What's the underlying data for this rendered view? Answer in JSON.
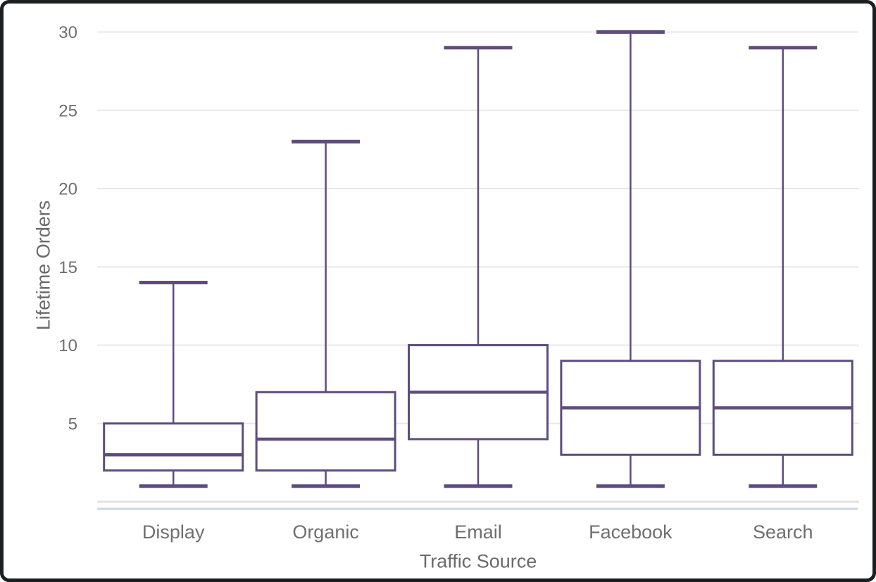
{
  "chart_data": {
    "type": "boxplot",
    "title": "",
    "xlabel": "Traffic Source",
    "ylabel": "Lifetime Orders",
    "categories": [
      "Display",
      "Organic",
      "Email",
      "Facebook",
      "Search"
    ],
    "series": [
      {
        "name": "Display",
        "min": 1,
        "q1": 2,
        "median": 3,
        "q3": 5,
        "max": 14
      },
      {
        "name": "Organic",
        "min": 1,
        "q1": 2,
        "median": 4,
        "q3": 7,
        "max": 23
      },
      {
        "name": "Email",
        "min": 1,
        "q1": 4,
        "median": 7,
        "q3": 10,
        "max": 29
      },
      {
        "name": "Facebook",
        "min": 1,
        "q1": 3,
        "median": 6,
        "q3": 9,
        "max": 30
      },
      {
        "name": "Search",
        "min": 1,
        "q1": 3,
        "median": 6,
        "q3": 9,
        "max": 29
      }
    ],
    "y_ticks": [
      5,
      10,
      15,
      20,
      25,
      30
    ],
    "ylim": [
      0,
      30.2
    ],
    "grid": true,
    "legend": false,
    "colors": {
      "box_stroke": "#5e4c7f",
      "gridline": "#e8e8e8",
      "zero_line": "#e2e2e2",
      "axis_border": "#ccd7e9",
      "tick_text": "#6f6f6f",
      "title_text": "#6a6a6a",
      "background": "#ffffff",
      "frame_border": "#1b1f21"
    }
  }
}
